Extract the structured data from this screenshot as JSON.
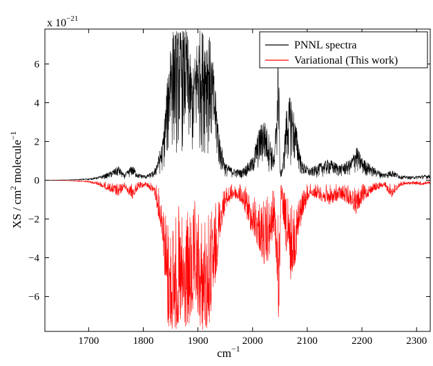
{
  "chart_data": {
    "type": "line",
    "xlabel": "cm",
    "xlabel_superscript": "−1",
    "ylabel": "XS / cm",
    "ylabel_superscript_1": "2",
    "ylabel_middle": " molecule",
    "ylabel_superscript_2": "−1",
    "y_multiplier": "x 10",
    "y_multiplier_exponent": "−21",
    "xlim": [
      1620,
      2325
    ],
    "ylim": [
      -7.8,
      7.8
    ],
    "x_ticks": [
      1700,
      1800,
      1900,
      2000,
      2100,
      2200,
      2300
    ],
    "y_ticks": [
      -6,
      -4,
      -2,
      0,
      2,
      4,
      6
    ],
    "y_tick_labels": [
      "−6",
      "−4",
      "−2",
      "0",
      "2",
      "4",
      "6"
    ],
    "legend_position": "top-right",
    "series": [
      {
        "name": "PNNL spectra",
        "color": "#000000",
        "envelope": [
          [
            1620,
            0.0
          ],
          [
            1660,
            0.02
          ],
          [
            1700,
            0.08
          ],
          [
            1720,
            0.2
          ],
          [
            1740,
            0.45
          ],
          [
            1755,
            0.75
          ],
          [
            1765,
            0.3
          ],
          [
            1780,
            0.8
          ],
          [
            1790,
            0.35
          ],
          [
            1805,
            0.25
          ],
          [
            1820,
            0.5
          ],
          [
            1835,
            2.0
          ],
          [
            1845,
            5.5
          ],
          [
            1850,
            7.8
          ],
          [
            1865,
            7.8
          ],
          [
            1880,
            7.8
          ],
          [
            1890,
            5.5
          ],
          [
            1900,
            7.8
          ],
          [
            1920,
            7.8
          ],
          [
            1930,
            5.5
          ],
          [
            1940,
            2.2
          ],
          [
            1950,
            0.9
          ],
          [
            1965,
            0.6
          ],
          [
            1980,
            0.55
          ],
          [
            2000,
            1.2
          ],
          [
            2010,
            2.5
          ],
          [
            2020,
            3.3
          ],
          [
            2030,
            2.4
          ],
          [
            2040,
            1.2
          ],
          [
            2048,
            7.8
          ],
          [
            2050,
            0.4
          ],
          [
            2055,
            0.8
          ],
          [
            2062,
            3.8
          ],
          [
            2070,
            4.5
          ],
          [
            2080,
            2.8
          ],
          [
            2090,
            1.0
          ],
          [
            2105,
            0.6
          ],
          [
            2120,
            0.85
          ],
          [
            2140,
            1.1
          ],
          [
            2160,
            0.8
          ],
          [
            2180,
            1.1
          ],
          [
            2190,
            1.8
          ],
          [
            2200,
            1.2
          ],
          [
            2220,
            0.7
          ],
          [
            2240,
            0.35
          ],
          [
            2255,
            0.55
          ],
          [
            2270,
            0.25
          ],
          [
            2290,
            0.2
          ],
          [
            2310,
            0.25
          ],
          [
            2325,
            0.3
          ]
        ]
      },
      {
        "name": "Variational (This work)",
        "color": "#ff0000",
        "envelope": [
          [
            1620,
            0.0
          ],
          [
            1660,
            -0.02
          ],
          [
            1700,
            -0.1
          ],
          [
            1720,
            -0.3
          ],
          [
            1740,
            -0.6
          ],
          [
            1755,
            -0.9
          ],
          [
            1765,
            -0.4
          ],
          [
            1780,
            -1.0
          ],
          [
            1790,
            -0.5
          ],
          [
            1805,
            -0.3
          ],
          [
            1820,
            -0.7
          ],
          [
            1835,
            -3.0
          ],
          [
            1845,
            -7.8
          ],
          [
            1850,
            -7.8
          ],
          [
            1870,
            -7.8
          ],
          [
            1885,
            -7.8
          ],
          [
            1895,
            -6.5
          ],
          [
            1905,
            -7.8
          ],
          [
            1920,
            -7.8
          ],
          [
            1930,
            -6.0
          ],
          [
            1940,
            -3.0
          ],
          [
            1950,
            -1.5
          ],
          [
            1965,
            -0.9
          ],
          [
            1980,
            -1.2
          ],
          [
            1995,
            -2.5
          ],
          [
            2010,
            -3.5
          ],
          [
            2022,
            -4.5
          ],
          [
            2030,
            -4.2
          ],
          [
            2040,
            -2.5
          ],
          [
            2048,
            -7.8
          ],
          [
            2052,
            -0.8
          ],
          [
            2060,
            -3.5
          ],
          [
            2070,
            -5.2
          ],
          [
            2080,
            -4.0
          ],
          [
            2090,
            -2.0
          ],
          [
            2105,
            -0.8
          ],
          [
            2120,
            -1.0
          ],
          [
            2140,
            -1.3
          ],
          [
            2160,
            -1.0
          ],
          [
            2180,
            -1.3
          ],
          [
            2190,
            -1.8
          ],
          [
            2200,
            -1.2
          ],
          [
            2220,
            -0.6
          ],
          [
            2240,
            -0.35
          ],
          [
            2255,
            -0.9
          ],
          [
            2270,
            -0.3
          ],
          [
            2290,
            -0.2
          ],
          [
            2310,
            -0.25
          ],
          [
            2325,
            -0.2
          ]
        ]
      }
    ]
  }
}
